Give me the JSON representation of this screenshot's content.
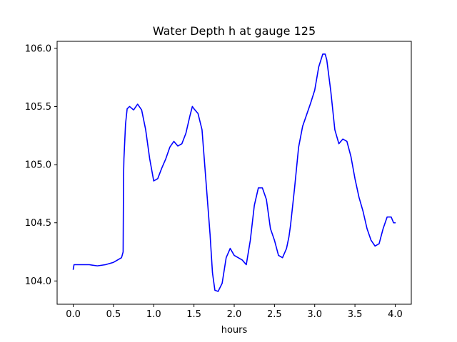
{
  "chart_data": {
    "type": "line",
    "title": "Water Depth h at gauge 125",
    "xlabel": "hours",
    "ylabel": "",
    "xlim": [
      -0.2,
      4.2
    ],
    "ylim": [
      103.8,
      106.06
    ],
    "x_ticks": [
      "0.0",
      "0.5",
      "1.0",
      "1.5",
      "2.0",
      "2.5",
      "3.0",
      "3.5",
      "4.0"
    ],
    "y_ticks": [
      "104.0",
      "104.5",
      "105.0",
      "105.5",
      "106.0"
    ],
    "grid": false,
    "legend": "none",
    "series": [
      {
        "color": "#0000ff",
        "x": [
          0.0,
          0.01,
          0.1,
          0.2,
          0.3,
          0.4,
          0.5,
          0.55,
          0.6,
          0.62,
          0.625,
          0.63,
          0.65,
          0.67,
          0.7,
          0.75,
          0.8,
          0.85,
          0.9,
          0.95,
          1.0,
          1.05,
          1.1,
          1.15,
          1.2,
          1.25,
          1.3,
          1.35,
          1.4,
          1.45,
          1.48,
          1.5,
          1.55,
          1.6,
          1.65,
          1.7,
          1.73,
          1.74,
          1.76,
          1.8,
          1.85,
          1.9,
          1.95,
          2.0,
          2.05,
          2.1,
          2.15,
          2.2,
          2.25,
          2.3,
          2.35,
          2.4,
          2.45,
          2.5,
          2.55,
          2.6,
          2.65,
          2.68,
          2.7,
          2.75,
          2.8,
          2.85,
          2.9,
          2.95,
          3.0,
          3.05,
          3.1,
          3.13,
          3.15,
          3.2,
          3.25,
          3.3,
          3.35,
          3.4,
          3.45,
          3.5,
          3.55,
          3.6,
          3.65,
          3.7,
          3.75,
          3.8,
          3.85,
          3.9,
          3.95,
          3.98,
          4.0
        ],
        "y": [
          104.1,
          104.14,
          104.14,
          104.14,
          104.13,
          104.14,
          104.16,
          104.18,
          104.2,
          104.25,
          104.9,
          105.05,
          105.35,
          105.48,
          105.5,
          105.47,
          105.52,
          105.47,
          105.3,
          105.05,
          104.86,
          104.88,
          104.97,
          105.05,
          105.15,
          105.2,
          105.16,
          105.18,
          105.27,
          105.42,
          105.5,
          105.48,
          105.44,
          105.3,
          104.85,
          104.4,
          104.07,
          104.02,
          103.92,
          103.91,
          103.98,
          104.2,
          104.28,
          104.22,
          104.2,
          104.18,
          104.14,
          104.35,
          104.65,
          104.8,
          104.8,
          104.7,
          104.45,
          104.35,
          104.22,
          104.2,
          104.28,
          104.38,
          104.48,
          104.8,
          105.15,
          105.33,
          105.43,
          105.53,
          105.64,
          105.84,
          105.95,
          105.95,
          105.9,
          105.63,
          105.3,
          105.18,
          105.22,
          105.2,
          105.07,
          104.88,
          104.72,
          104.6,
          104.45,
          104.35,
          104.3,
          104.32,
          104.45,
          104.55,
          104.55,
          104.5,
          104.5
        ]
      }
    ]
  }
}
